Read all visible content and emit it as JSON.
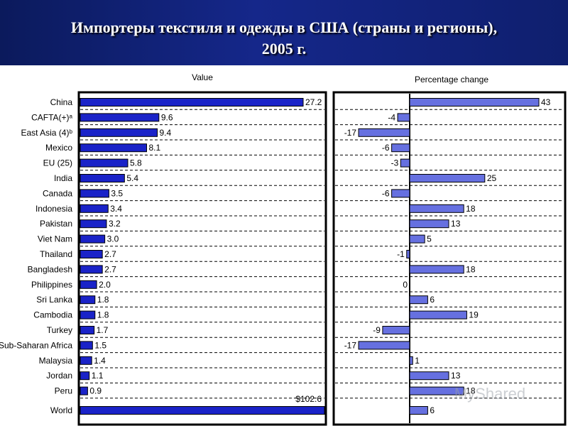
{
  "slide": {
    "title_line1": "Импортеры текстиля и одежды в США (страны и регионы),",
    "title_line2": "2005 г."
  },
  "watermark": "MyShared",
  "chart_data": [
    {
      "type": "bar",
      "orientation": "horizontal",
      "title": "Value",
      "categories": [
        "China",
        "CAFTA(+)ᵃ",
        "East Asia (4)ᵇ",
        "Mexico",
        "EU (25)",
        "India",
        "Canada",
        "Indonesia",
        "Pakistan",
        "Viet Nam",
        "Thailand",
        "Bangladesh",
        "Philippines",
        "Sri Lanka",
        "Cambodia",
        "Turkey",
        "Sub-Saharan Africa",
        "Malaysia",
        "Jordan",
        "Peru",
        "World"
      ],
      "values": [
        27.2,
        9.6,
        9.4,
        8.1,
        5.8,
        5.4,
        3.5,
        3.4,
        3.2,
        3.0,
        2.7,
        2.7,
        2.0,
        1.8,
        1.8,
        1.7,
        1.5,
        1.4,
        1.1,
        0.9,
        102.6
      ],
      "labels": [
        "27.2",
        "9.6",
        "9.4",
        "8.1",
        "5.8",
        "5.4",
        "3.5",
        "3.4",
        "3.2",
        "3.0",
        "2.7",
        "2.7",
        "2.0",
        "1.8",
        "1.8",
        "1.7",
        "1.5",
        "1.4",
        "1.1",
        "0.9",
        "$102.6"
      ],
      "color": "#1a23c8",
      "grid": "dashed horizontal"
    },
    {
      "type": "bar",
      "orientation": "horizontal",
      "title": "Percentage change",
      "categories": [
        "China",
        "CAFTA(+)ᵃ",
        "East Asia (4)ᵇ",
        "Mexico",
        "EU (25)",
        "India",
        "Canada",
        "Indonesia",
        "Pakistan",
        "Viet Nam",
        "Thailand",
        "Bangladesh",
        "Philippines",
        "Sri Lanka",
        "Cambodia",
        "Turkey",
        "Sub-Saharan Africa",
        "Malaysia",
        "Jordan",
        "Peru",
        "World"
      ],
      "values": [
        43,
        -4,
        -17,
        -6,
        -3,
        25,
        -6,
        18,
        13,
        5,
        -1,
        18,
        0,
        6,
        19,
        -9,
        -17,
        1,
        13,
        18,
        6
      ],
      "labels": [
        "43",
        "-4",
        "-17",
        "-6",
        "-3",
        "25",
        "-6",
        "18",
        "13",
        "5",
        "-1",
        "18",
        "0",
        "6",
        "19",
        "-9",
        "-17",
        "1",
        "13",
        "18",
        "6"
      ],
      "color": "#6670e0",
      "grid": "dashed horizontal"
    }
  ]
}
